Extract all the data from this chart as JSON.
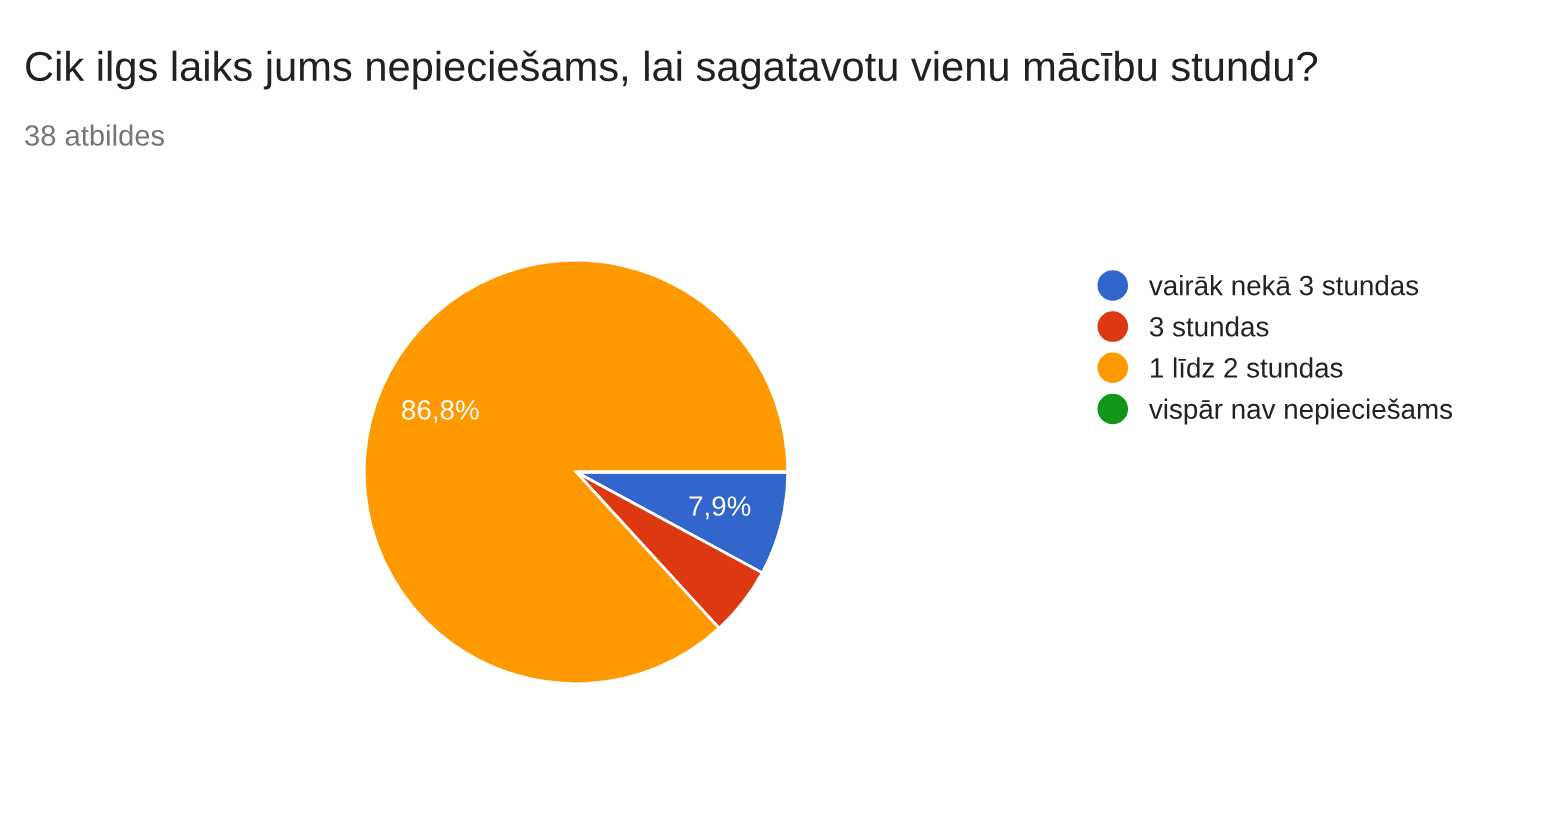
{
  "chart_data": {
    "type": "pie",
    "title": "Cik ilgs laiks jums nepieciešams, lai sagatavotu vienu mācību stundu?",
    "subtitle": "38 atbildes",
    "categories": [
      "vairāk nekā 3 stundas",
      "3 stundas",
      "1 līdz 2 stundas",
      "vispār nav nepieciešams"
    ],
    "values": [
      7.9,
      5.3,
      86.8,
      0
    ],
    "colors": [
      "#3366cc",
      "#dc3912",
      "#ff9900",
      "#109618"
    ],
    "value_labels": [
      "7,9%",
      null,
      "86,8%",
      null
    ],
    "legend": "right"
  }
}
